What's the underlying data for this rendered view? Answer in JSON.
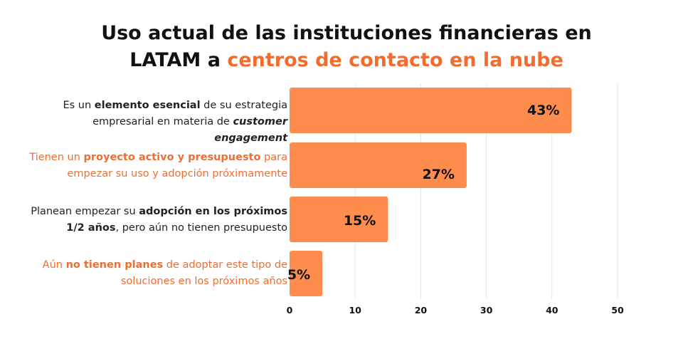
{
  "title": {
    "line1": "Uso actual de las instituciones financieras en",
    "line2_prefix": "LATAM a ",
    "line2_accent": "centros de contacto en la nube"
  },
  "colors": {
    "bar": "#fd8c4d",
    "accent": "#f26d2d",
    "text": "#222222",
    "grid": "#e6e6e6"
  },
  "chart_data": {
    "type": "bar",
    "orientation": "horizontal",
    "categories": [
      "Es un elemento esencial de su estrategia empresarial en materia de customer engagement",
      "Tienen un proyecto activo y presupuesto para empezar su uso y adopción próximamente",
      "Planean empezar su adopción en los próximos 1/2 años, pero aún no tienen presupuesto",
      "Aún no tienen planes de adoptar este tipo de soluciones en los próximos años"
    ],
    "values": [
      43,
      27,
      15,
      5
    ],
    "value_labels": [
      "43%",
      "27%",
      "15%",
      "5%"
    ],
    "xlim": [
      0,
      50
    ],
    "xticks": [
      "0",
      "10",
      "20",
      "30",
      "40",
      "50"
    ],
    "grid": "vertical",
    "xlabel": "",
    "ylabel": ""
  },
  "labels": [
    {
      "style": "dark",
      "line1": [
        {
          "t": "Es un "
        },
        {
          "t": "elemento esencial",
          "b": true
        },
        {
          "t": " de su estrategia"
        }
      ],
      "line2": [
        {
          "t": "empresarial en materia de "
        },
        {
          "t": "customer engagement",
          "b": true,
          "i": true
        }
      ]
    },
    {
      "style": "orange",
      "line1": [
        {
          "t": "Tienen un "
        },
        {
          "t": "proyecto activo y presupuesto",
          "b": true
        },
        {
          "t": " para"
        }
      ],
      "line2": [
        {
          "t": "empezar su uso y adopción próximamente"
        }
      ]
    },
    {
      "style": "dark",
      "line1": [
        {
          "t": "Planean empezar su "
        },
        {
          "t": "adopción en los próximos",
          "b": true
        }
      ],
      "line2": [
        {
          "t": "1/2 años",
          "b": true
        },
        {
          "t": ", pero aún no tienen presupuesto"
        }
      ]
    },
    {
      "style": "orange",
      "line1": [
        {
          "t": "Aún "
        },
        {
          "t": "no tienen planes",
          "b": true
        },
        {
          "t": " de adoptar este tipo de"
        }
      ],
      "line2": [
        {
          "t": "soluciones en los próximos años"
        }
      ]
    }
  ]
}
